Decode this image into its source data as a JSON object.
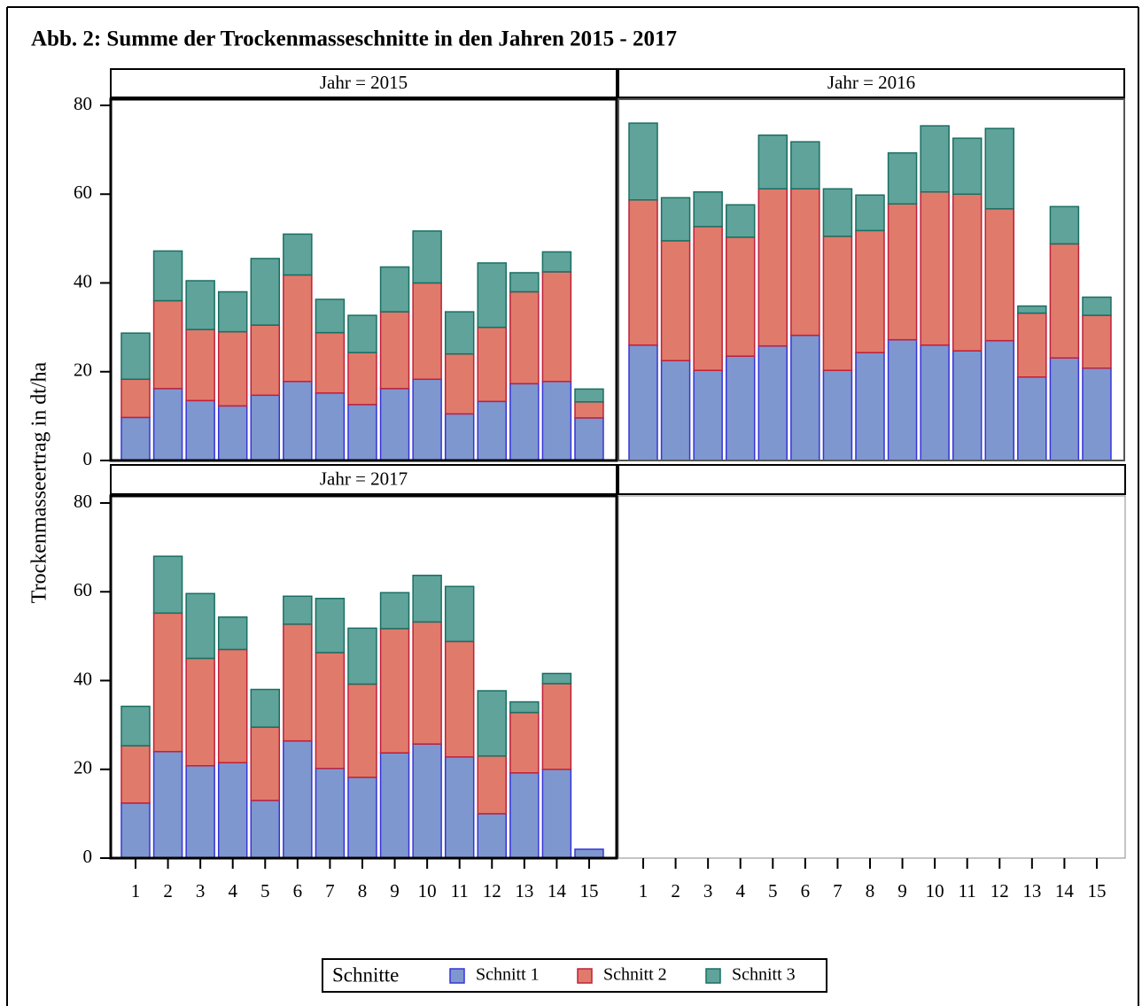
{
  "title": "Abb. 2: Summe der Trockenmasseschnitte in den Jahren 2015 - 2017",
  "y_label": "Trockenmasseertrag in dt/ha",
  "legend_title": "Schnitte",
  "categories": [
    "1",
    "2",
    "3",
    "4",
    "5",
    "6",
    "7",
    "8",
    "9",
    "10",
    "11",
    "12",
    "13",
    "14",
    "15"
  ],
  "ylim": [
    0,
    80
  ],
  "yticks": [
    0,
    20,
    40,
    60,
    80
  ],
  "series": [
    {
      "name": "Schnitt 1",
      "color": "#7f97cf",
      "edge": "#3535d8"
    },
    {
      "name": "Schnitt 2",
      "color": "#e07b6c",
      "edge": "#c0203a"
    },
    {
      "name": "Schnitt 3",
      "color": "#5fa39a",
      "edge": "#1a6f62"
    }
  ],
  "chart_data": [
    {
      "type": "bar",
      "stacked": true,
      "title": "Jahr = 2015",
      "values": [
        [
          9.7,
          16.2,
          13.5,
          12.3,
          14.7,
          17.8,
          15.2,
          12.6,
          16.2,
          18.3,
          10.5,
          13.3,
          17.3,
          17.8,
          9.6
        ],
        [
          8.6,
          19.8,
          16,
          16.7,
          15.8,
          24,
          13.6,
          11.7,
          17.3,
          21.7,
          13.5,
          16.7,
          20.7,
          24.7,
          3.6
        ],
        [
          10.4,
          11.2,
          11,
          9,
          15,
          9.2,
          7.5,
          8.4,
          10.1,
          11.7,
          9.5,
          14.5,
          4.3,
          4.5,
          2.9
        ]
      ]
    },
    {
      "type": "bar",
      "stacked": true,
      "title": "Jahr = 2016",
      "values": [
        [
          26,
          22.5,
          20.3,
          23.5,
          25.8,
          28.2,
          20.3,
          24.3,
          27.2,
          26,
          24.7,
          27,
          18.8,
          23.1,
          20.8
        ],
        [
          32.7,
          27,
          32.4,
          26.8,
          35.4,
          33,
          30.2,
          27.5,
          30.6,
          34.5,
          35.3,
          29.7,
          14.4,
          25.7,
          11.9
        ],
        [
          17.3,
          9.7,
          7.8,
          7.3,
          12.1,
          10.6,
          10.7,
          8,
          11.5,
          14.9,
          12.6,
          18.1,
          1.6,
          8.4,
          4.1
        ]
      ]
    },
    {
      "type": "bar",
      "stacked": true,
      "title": "Jahr = 2017",
      "values": [
        [
          12.4,
          24,
          20.8,
          21.5,
          13,
          26.4,
          20.2,
          18.2,
          23.7,
          25.7,
          22.8,
          10,
          19.2,
          20,
          2
        ],
        [
          12.9,
          31.2,
          24.2,
          25.5,
          16.5,
          26.3,
          26.1,
          21,
          28,
          27.5,
          26,
          13,
          13.6,
          19.3,
          0
        ],
        [
          8.9,
          12.8,
          14.6,
          7.3,
          8.5,
          6.3,
          12.2,
          12.6,
          8.1,
          10.5,
          12.4,
          14.7,
          2.4,
          2.3,
          0
        ]
      ]
    }
  ]
}
